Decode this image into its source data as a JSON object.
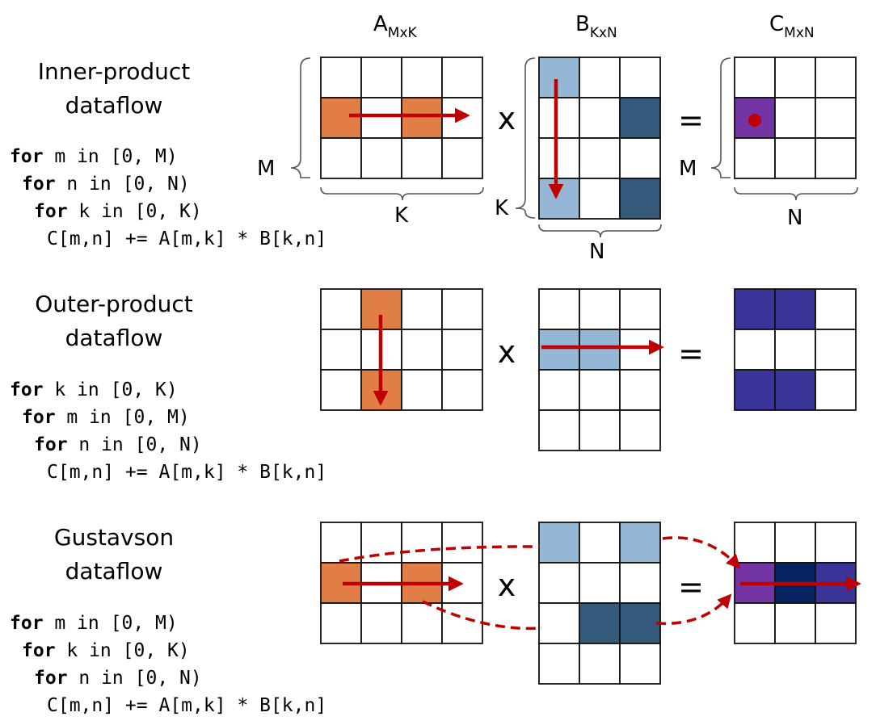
{
  "headers": {
    "a": {
      "base": "A",
      "sub": "MxK"
    },
    "b": {
      "base": "B",
      "sub": "KxN"
    },
    "c": {
      "base": "C",
      "sub": "MxN"
    }
  },
  "colors": {
    "a_orange": "#e07e45",
    "b_light": "#95b7d6",
    "b_dark": "#355a7c",
    "c_purple": "#7435a4",
    "c_indigo": "#3a3498",
    "c_navy": "#062462",
    "arrow_red": "#c00000"
  },
  "operators": {
    "times": "x",
    "equals": "="
  },
  "dims": {
    "m": "M",
    "k": "K",
    "n": "N"
  },
  "sections": [
    {
      "id": "inner",
      "title_lines": [
        "Inner-product",
        "dataflow"
      ],
      "code": [
        {
          "kw": "for",
          "rest": " m in [0, M)"
        },
        {
          "kw": "for",
          "rest": " n in [0, N)"
        },
        {
          "kw": "for",
          "rest": " k in [0, K)"
        },
        {
          "kw": "",
          "rest": "C[m,n] += A[m,k] * B[k,n]"
        }
      ]
    },
    {
      "id": "outer",
      "title_lines": [
        "Outer-product",
        "dataflow"
      ],
      "code": [
        {
          "kw": "for",
          "rest": " k in [0, K)"
        },
        {
          "kw": "for",
          "rest": " m in [0, M)"
        },
        {
          "kw": "for",
          "rest": " n in [0, N)"
        },
        {
          "kw": "",
          "rest": "C[m,n] += A[m,k] * B[k,n]"
        }
      ]
    },
    {
      "id": "gustavson",
      "title_lines": [
        "Gustavson",
        "dataflow"
      ],
      "code": [
        {
          "kw": "for",
          "rest": " m in [0, M)"
        },
        {
          "kw": "for",
          "rest": " k in [0, K)"
        },
        {
          "kw": "for",
          "rest": " n in [0, N)"
        },
        {
          "kw": "",
          "rest": "C[m,n] += A[m,k] * B[k,n]"
        }
      ]
    }
  ],
  "matrices": {
    "inner": {
      "a": {
        "rows": 3,
        "cols": 4,
        "filled": [
          [
            1,
            0,
            "a_orange"
          ],
          [
            1,
            2,
            "a_orange"
          ]
        ]
      },
      "b": {
        "rows": 4,
        "cols": 3,
        "filled": [
          [
            0,
            0,
            "b_light"
          ],
          [
            1,
            2,
            "b_dark"
          ],
          [
            3,
            0,
            "b_light"
          ],
          [
            3,
            2,
            "b_dark"
          ]
        ]
      },
      "c": {
        "rows": 3,
        "cols": 3,
        "filled": [
          [
            1,
            0,
            "c_purple"
          ]
        ]
      }
    },
    "outer": {
      "a": {
        "rows": 3,
        "cols": 4,
        "filled": [
          [
            0,
            1,
            "a_orange"
          ],
          [
            2,
            1,
            "a_orange"
          ]
        ]
      },
      "b": {
        "rows": 4,
        "cols": 3,
        "filled": [
          [
            1,
            0,
            "b_light"
          ],
          [
            1,
            1,
            "b_light"
          ]
        ]
      },
      "c": {
        "rows": 3,
        "cols": 3,
        "filled": [
          [
            0,
            0,
            "c_indigo"
          ],
          [
            0,
            1,
            "c_indigo"
          ],
          [
            2,
            0,
            "c_indigo"
          ],
          [
            2,
            1,
            "c_indigo"
          ]
        ]
      }
    },
    "gustavson": {
      "a": {
        "rows": 3,
        "cols": 4,
        "filled": [
          [
            1,
            0,
            "a_orange"
          ],
          [
            1,
            2,
            "a_orange"
          ]
        ]
      },
      "b": {
        "rows": 4,
        "cols": 3,
        "filled": [
          [
            0,
            0,
            "b_light"
          ],
          [
            0,
            2,
            "b_light"
          ],
          [
            2,
            1,
            "b_dark"
          ],
          [
            2,
            2,
            "b_dark"
          ]
        ]
      },
      "c": {
        "rows": 3,
        "cols": 3,
        "filled": [
          [
            1,
            0,
            "c_purple"
          ],
          [
            1,
            1,
            "c_navy"
          ],
          [
            1,
            2,
            "c_indigo"
          ]
        ]
      }
    }
  }
}
